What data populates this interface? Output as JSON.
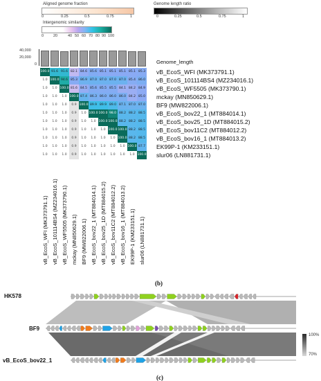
{
  "legend": {
    "aligned": {
      "title": "Aligned genome fraction",
      "ticks": [
        "0",
        "0.25",
        "0.5",
        "0.75",
        "1"
      ]
    },
    "ratio": {
      "title": "Genome length ratio",
      "ticks": [
        "0",
        "0.25",
        "0.5",
        "0.75",
        "1"
      ]
    },
    "similarity": {
      "title": "Intergenomic similarity",
      "ticks": [
        "0",
        "20",
        "40",
        "50",
        "60",
        "70",
        "80",
        "90",
        "100"
      ]
    }
  },
  "length_axis": {
    "ticks": [
      "40,000",
      "20,000",
      "0"
    ],
    "label": "Genome_length"
  },
  "genomes": [
    "vB_EcoS_WFI (MK373791.1)",
    "vB_EcoS_101114BS4 (MZ234016.1)",
    "vB_EcoS_WF5505 (MK373790.1)",
    "mckay (MN850629.1)",
    "BF9 (MW822006.1)",
    "vB_EcoS_bov22_1 (MT884014.1)",
    "vB_EcoS_bov25_1D (MT884015.2)",
    "vB_EcoS_bov11C2 (MT884012.2)",
    "vB_EcoS_bov16_1 (MT884013.2)",
    "EK99P-1 (KM233151.1)",
    "slur06 (LN881731.1)"
  ],
  "bar_fraction": [
    0.88,
    0.9,
    0.86,
    0.89,
    0.87,
    0.9,
    0.88,
    0.9,
    0.89,
    0.86,
    0.85
  ],
  "similarity_matrix": [
    [
      "100.0",
      "91.6",
      "91.6",
      "82.1",
      "84.6",
      "85.6",
      "85.1",
      "85.1",
      "85.1",
      "85.1",
      "85.3"
    ],
    [
      "1.0",
      "100.0",
      "94.6",
      "85.3",
      "86.9",
      "87.0",
      "87.0",
      "87.0",
      "87.0",
      "85.4",
      "86.0"
    ],
    [
      "1.0",
      "1.0",
      "100.0",
      "81.6",
      "84.5",
      "85.6",
      "85.5",
      "85.5",
      "84.1",
      "84.2",
      "84.9"
    ],
    [
      "1.0",
      "1.0",
      "1.0",
      "100.0",
      "87.4",
      "86.3",
      "86.0",
      "86.0",
      "86.0",
      "84.2",
      "85.0"
    ],
    [
      "1.0",
      "1.0",
      "1.0",
      "0.9",
      "100.0",
      "89.9",
      "89.9",
      "89.0",
      "87.1",
      "87.0",
      "87.0"
    ],
    [
      "1.0",
      "1.0",
      "1.0",
      "0.9",
      "1.0",
      "100.0",
      "100.0",
      "98.0",
      "88.2",
      "88.2",
      "88.5"
    ],
    [
      "1.0",
      "1.0",
      "1.0",
      "0.9",
      "1.0",
      "1.0",
      "100.0",
      "100.0",
      "88.2",
      "88.2",
      "88.5"
    ],
    [
      "1.0",
      "1.0",
      "1.0",
      "0.9",
      "1.0",
      "1.0",
      "1.0",
      "100.0",
      "100.0",
      "88.2",
      "88.5"
    ],
    [
      "1.0",
      "1.0",
      "1.0",
      "0.9",
      "1.0",
      "1.0",
      "1.0",
      "1.0",
      "100.0",
      "88.2",
      "88.5"
    ],
    [
      "1.0",
      "1.0",
      "1.0",
      "0.9",
      "1.0",
      "1.0",
      "1.0",
      "1.0",
      "1.0",
      "100.0",
      "87.7"
    ],
    [
      "1.0",
      "1.0",
      "1.0",
      "0.9",
      "1.0",
      "1.0",
      "1.0",
      "1.0",
      "1.0",
      "1.0",
      "100.0"
    ]
  ],
  "panel_b": "(b)",
  "panel_c": "(c)",
  "synteny": {
    "tracks": [
      "HK578",
      "BF9",
      "vB_EcoS_bov22_1"
    ],
    "scale": {
      "top": "100%",
      "bottom": "70%"
    }
  },
  "colors": {
    "teal": "#0a6b5a",
    "gene_green": "#8fd11f",
    "gene_blue": "#1fa2e6",
    "gene_orange": "#f07b1d",
    "gene_red": "#d8262c",
    "gene_gray": "#b9b9b9",
    "gene_pink": "#e0a0d8",
    "gene_purple": "#7a4fb0"
  }
}
